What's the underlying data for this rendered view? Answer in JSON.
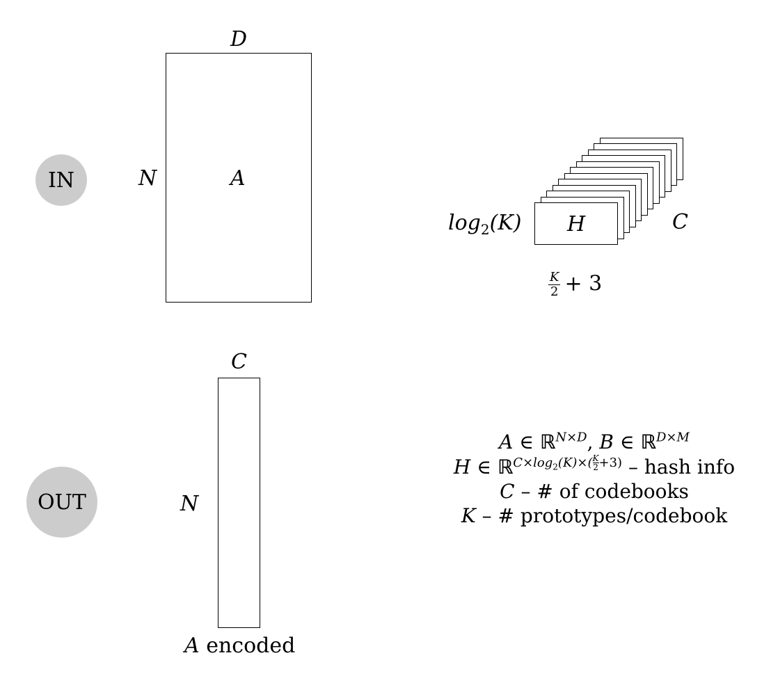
{
  "in_badge": "IN",
  "out_badge": "OUT",
  "input_matrix": {
    "name": "A",
    "cols_label": "D",
    "rows_label": "N"
  },
  "hash_tensor": {
    "name": "H",
    "rows_label_fn": "log",
    "rows_label_sub": "2",
    "rows_label_arg": "(K)",
    "depth_label": "C",
    "width_frac_num": "K",
    "width_frac_den": "2",
    "width_suffix": "+ 3",
    "layer_count": 12
  },
  "output_matrix": {
    "cols_label": "C",
    "rows_label": "N",
    "caption_var": "A",
    "caption_text": "encoded"
  },
  "legend": {
    "line1": {
      "a": "A",
      "in1": "∈",
      "r1": "ℝ",
      "sup1": "N×D",
      "comma": ",",
      "b": "B",
      "in2": "∈",
      "r2": "ℝ",
      "sup2": "D×M"
    },
    "line2": {
      "h": "H",
      "in": "∈",
      "r": "ℝ",
      "sup_pre": "C×log",
      "sup_sub": "2",
      "sup_mid": "(K)×(",
      "sup_frac_n": "K",
      "sup_frac_d": "2",
      "sup_post": "+3)",
      "text": "– hash info"
    },
    "line3": {
      "var": "C",
      "text": "– # of codebooks"
    },
    "line4": {
      "var": "K",
      "text": "– # prototypes/codebook"
    }
  }
}
